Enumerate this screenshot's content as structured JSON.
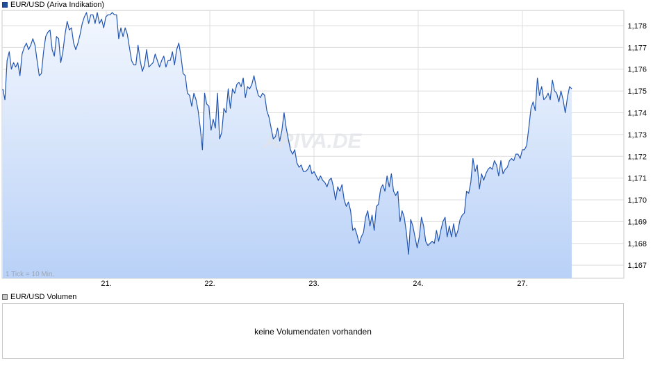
{
  "price_legend": {
    "label": "EUR/USD (Ariva Indikation)",
    "swatch_color": "#1f4e9c",
    "icon": "legend-swatch-icon"
  },
  "volume_legend": {
    "label": "EUR/USD Volumen",
    "swatch_color": "#c8c8c8",
    "icon": "legend-swatch-icon"
  },
  "volume_panel": {
    "message": "keine Volumendaten vorhanden"
  },
  "watermark": "ARIVA.DE",
  "tick_note": "1 Tick = 10 Min.",
  "colors": {
    "line": "#2255b0",
    "area_top": "#f3f7fe",
    "area_bottom": "#b9d1f7",
    "grid": "#dcdcdc"
  },
  "chart_data": {
    "type": "area",
    "title": "EUR/USD (Ariva Indikation)",
    "xlabel": "",
    "ylabel": "",
    "x_tick_labels": [
      "21.",
      "22.",
      "23.",
      "24.",
      "27."
    ],
    "y_tick_labels": [
      "1,167",
      "1,168",
      "1,169",
      "1,170",
      "1,171",
      "1,172",
      "1,173",
      "1,174",
      "1,175",
      "1,176",
      "1,177",
      "1,178"
    ],
    "ylim": [
      1.1664,
      1.1787
    ],
    "grid": true,
    "series": [
      {
        "name": "EUR/USD",
        "values": [
          1.1751,
          1.1746,
          1.1764,
          1.1768,
          1.176,
          1.1763,
          1.1761,
          1.1763,
          1.1757,
          1.1767,
          1.177,
          1.1772,
          1.1769,
          1.1771,
          1.1774,
          1.1771,
          1.1764,
          1.1757,
          1.1758,
          1.1768,
          1.1775,
          1.1777,
          1.1778,
          1.1769,
          1.1766,
          1.1775,
          1.1774,
          1.1763,
          1.1768,
          1.1776,
          1.1782,
          1.1778,
          1.1779,
          1.1772,
          1.1769,
          1.1772,
          1.1776,
          1.1781,
          1.1784,
          1.1786,
          1.1781,
          1.1785,
          1.1785,
          1.1781,
          1.1786,
          1.1781,
          1.1783,
          1.1779,
          1.1784,
          1.1785,
          1.1785,
          1.1786,
          1.1785,
          1.1785,
          1.1774,
          1.1779,
          1.1775,
          1.1779,
          1.1776,
          1.177,
          1.1764,
          1.1762,
          1.1762,
          1.1771,
          1.1764,
          1.1759,
          1.1762,
          1.1769,
          1.1761,
          1.1762,
          1.1763,
          1.1767,
          1.1764,
          1.1761,
          1.1764,
          1.1766,
          1.1761,
          1.1764,
          1.1764,
          1.1768,
          1.1762,
          1.1769,
          1.1772,
          1.1766,
          1.1758,
          1.1757,
          1.1749,
          1.1748,
          1.1743,
          1.1749,
          1.1746,
          1.1741,
          1.1733,
          1.1723,
          1.1749,
          1.1744,
          1.1743,
          1.1732,
          1.1737,
          1.1733,
          1.1749,
          1.1728,
          1.1731,
          1.1742,
          1.174,
          1.1751,
          1.1742,
          1.1751,
          1.1749,
          1.1753,
          1.1754,
          1.1752,
          1.1756,
          1.1747,
          1.1752,
          1.1751,
          1.1753,
          1.1757,
          1.1752,
          1.1748,
          1.1747,
          1.1749,
          1.1748,
          1.1741,
          1.1738,
          1.1733,
          1.1728,
          1.1729,
          1.1733,
          1.1727,
          1.1732,
          1.174,
          1.1733,
          1.1728,
          1.1723,
          1.1721,
          1.1723,
          1.1717,
          1.1715,
          1.1716,
          1.1713,
          1.1713,
          1.1714,
          1.1716,
          1.1712,
          1.1713,
          1.1711,
          1.1709,
          1.1711,
          1.1709,
          1.1708,
          1.1706,
          1.1709,
          1.171,
          1.1706,
          1.17,
          1.1706,
          1.1704,
          1.1707,
          1.17,
          1.1697,
          1.1699,
          1.1695,
          1.1686,
          1.1687,
          1.1684,
          1.168,
          1.1683,
          1.1685,
          1.1692,
          1.1695,
          1.1688,
          1.1693,
          1.1686,
          1.1697,
          1.1698,
          1.1705,
          1.1707,
          1.1704,
          1.1711,
          1.1706,
          1.1712,
          1.1704,
          1.1702,
          1.1704,
          1.169,
          1.1695,
          1.1692,
          1.1685,
          1.1675,
          1.1691,
          1.1688,
          1.1683,
          1.1678,
          1.1683,
          1.1692,
          1.1688,
          1.1681,
          1.1679,
          1.168,
          1.1681,
          1.168,
          1.1686,
          1.1681,
          1.1686,
          1.169,
          1.1692,
          1.1683,
          1.1688,
          1.1683,
          1.1689,
          1.1683,
          1.1686,
          1.1691,
          1.1693,
          1.1694,
          1.1704,
          1.1703,
          1.1708,
          1.1719,
          1.1713,
          1.1716,
          1.1705,
          1.1712,
          1.1709,
          1.1712,
          1.1714,
          1.1715,
          1.1714,
          1.1718,
          1.1716,
          1.1711,
          1.1718,
          1.1712,
          1.1714,
          1.1715,
          1.1718,
          1.1719,
          1.1718,
          1.1721,
          1.1721,
          1.1719,
          1.1723,
          1.1723,
          1.1725,
          1.1733,
          1.1742,
          1.1745,
          1.1741,
          1.1756,
          1.1748,
          1.1752,
          1.1746,
          1.1747,
          1.1749,
          1.1746,
          1.1755,
          1.175,
          1.1749,
          1.1745,
          1.175,
          1.1746,
          1.174,
          1.1747,
          1.1752,
          1.1751
        ]
      }
    ]
  }
}
